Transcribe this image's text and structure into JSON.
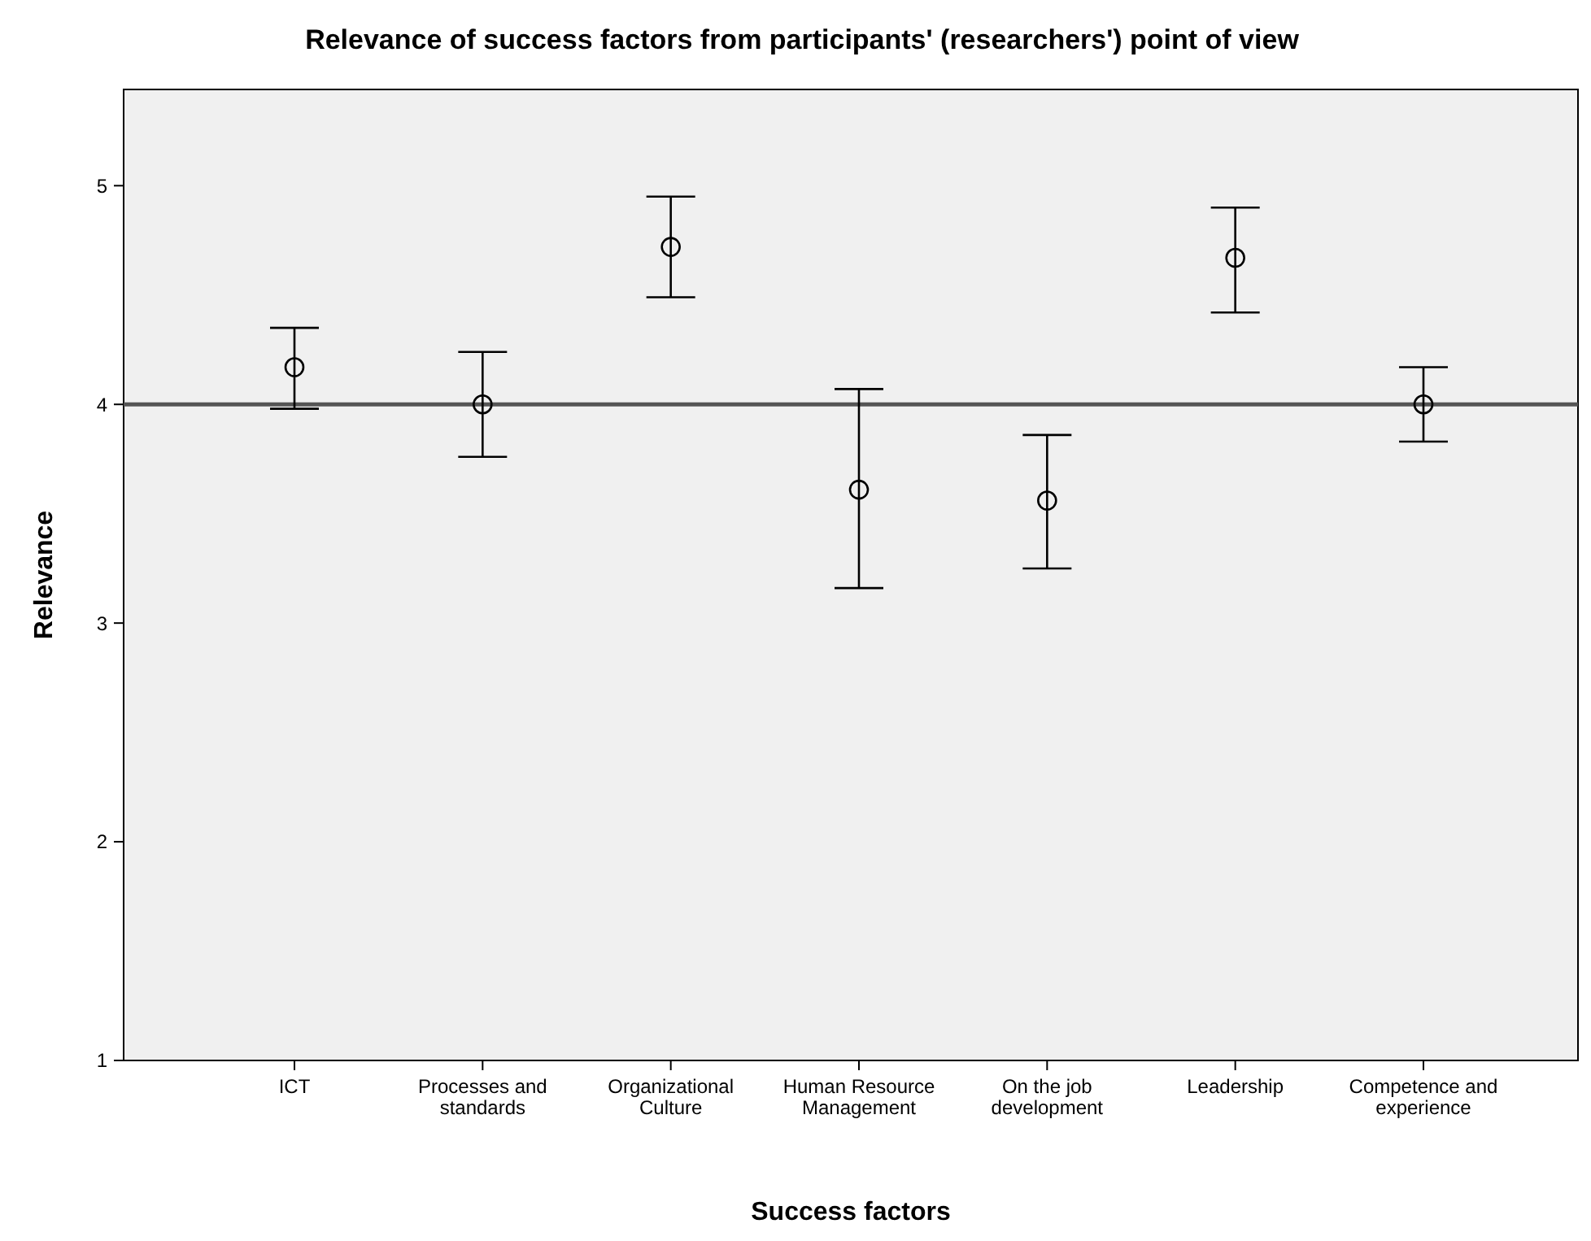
{
  "chart_data": {
    "type": "scatter",
    "title": "Relevance of success factors from participants' (researchers') point of view",
    "xlabel": "Success factors",
    "ylabel": "Relevance",
    "categories": [
      "ICT",
      "Processes and standards",
      "Organizational Culture",
      "Human Resource Management",
      "On the job development",
      "Leadership",
      "Competence and experience"
    ],
    "series": [
      {
        "color": "#000000",
        "values": [
          4.17,
          4.0,
          4.72,
          3.61,
          3.56,
          4.67,
          4.0
        ],
        "errors": [
          [
            3.98,
            4.35
          ],
          [
            3.76,
            4.24
          ],
          [
            4.49,
            4.95
          ],
          [
            3.16,
            4.07
          ],
          [
            3.25,
            3.86
          ],
          [
            4.42,
            4.9
          ],
          [
            3.83,
            4.17
          ]
        ]
      }
    ],
    "marker": "circle",
    "ylim": [
      1,
      5.44
    ],
    "yticks": [
      1,
      2,
      3,
      4,
      5
    ],
    "grid": false,
    "ref_lines": [
      {
        "axis": "y",
        "value": 4,
        "color": "#555555"
      }
    ]
  }
}
